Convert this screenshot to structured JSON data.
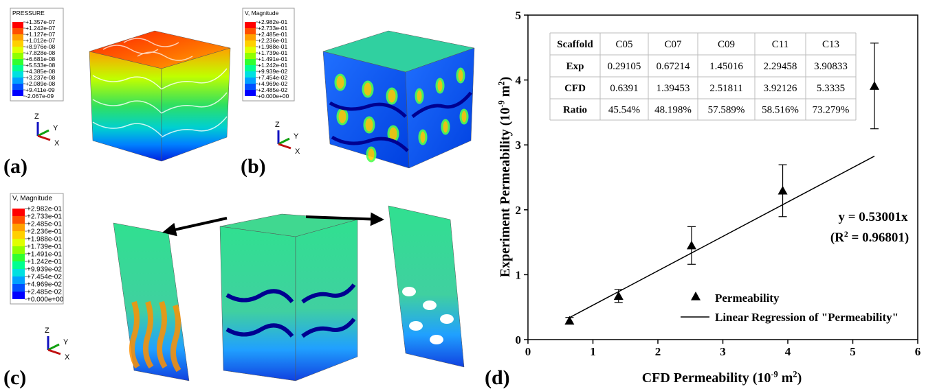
{
  "panels": [
    {
      "label": "(a)",
      "legend": {
        "title": "PRESSURE",
        "values": [
          "+1.357e-07",
          "+1.242e-07",
          "+1.127e-07",
          "+1.012e-07",
          "+8.976e-08",
          "+7.828e-08",
          "+6.681e-08",
          "+5.533e-08",
          "+4.385e-08",
          "+3.237e-08",
          "+2.089e-08",
          "+9.411e-09",
          "-2.067e-09"
        ]
      },
      "triad": [
        "Z",
        "Y",
        "X"
      ]
    },
    {
      "label": "(b)",
      "legend": {
        "title": "V, Magnitude",
        "values": [
          "+2.982e-01",
          "+2.733e-01",
          "+2.485e-01",
          "+2.236e-01",
          "+1.988e-01",
          "+1.739e-01",
          "+1.491e-01",
          "+1.242e-01",
          "+9.939e-02",
          "+7.454e-02",
          "+4.969e-02",
          "+2.485e-02",
          "+0.000e+00"
        ]
      },
      "triad": [
        "Z",
        "Y",
        "X"
      ]
    },
    {
      "label": "(c)",
      "legend": {
        "title": "V, Magnitude",
        "values": [
          "+2.982e-01",
          "+2.733e-01",
          "+2.485e-01",
          "+2.236e-01",
          "+1.988e-01",
          "+1.739e-01",
          "+1.491e-01",
          "+1.242e-01",
          "+9.939e-02",
          "+7.454e-02",
          "+4.969e-02",
          "+2.485e-02",
          "+0.000e+00"
        ]
      },
      "triad": [
        "Z",
        "Y",
        "X"
      ]
    }
  ],
  "colormap": [
    "#ff0000",
    "#ff5000",
    "#ffa000",
    "#ffd000",
    "#e0ff00",
    "#90ff00",
    "#30ff30",
    "#00ff90",
    "#00e0e0",
    "#00a0ff",
    "#0050ff",
    "#0000ff"
  ],
  "chart_data": {
    "type": "scatter",
    "label": "(d)",
    "xlabel": [
      "CFD Permeability (10",
      "-9",
      " m",
      "2",
      ")"
    ],
    "ylabel": [
      "Experiment Permeability (10",
      "-9",
      " m",
      "2",
      ")"
    ],
    "series_name": "Permeability",
    "x": [
      0.6391,
      1.39453,
      2.51811,
      3.92126,
      5.3335
    ],
    "values": [
      0.29105,
      0.67214,
      1.45016,
      2.29458,
      3.90833
    ],
    "errors": [
      0.05,
      0.1,
      0.29,
      0.4,
      0.66
    ],
    "color": "#000000",
    "fit": {
      "name": "Linear Regression of \"Permeability\"",
      "slope": 0.53001
    },
    "annotation": "y = 0.53001x",
    "r2": [
      "(R",
      "2",
      " = 0.96801)"
    ],
    "table": {
      "header": [
        "Scaffold",
        "C05",
        "C07",
        "C09",
        "C11",
        "C13"
      ],
      "row_labels": [
        "Exp",
        "CFD",
        "Ratio"
      ],
      "ratio": [
        "45.54%",
        "48.198%",
        "57.589%",
        "58.516%",
        "73.279%"
      ]
    },
    "xlim": [
      0,
      6
    ],
    "ylim": [
      0,
      5
    ],
    "xticks": [
      0,
      1,
      2,
      3,
      4,
      5,
      6
    ],
    "yticks": [
      0,
      1,
      2,
      3,
      4,
      5
    ]
  }
}
